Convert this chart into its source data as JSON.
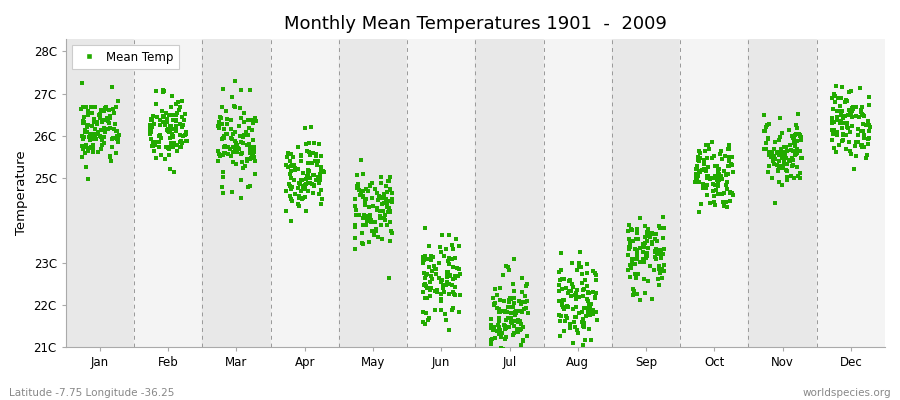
{
  "title": "Monthly Mean Temperatures 1901  -  2009",
  "ylabel": "Temperature",
  "xlabel_bottom": "Latitude -7.75 Longitude -36.25",
  "watermark": "worldspecies.org",
  "yticks": [
    21,
    22,
    23,
    25,
    26,
    27,
    28
  ],
  "ytick_labels": [
    "21C",
    "22C",
    "23C",
    "25C",
    "26C",
    "27C",
    "28C"
  ],
  "months": [
    "Jan",
    "Feb",
    "Mar",
    "Apr",
    "May",
    "Jun",
    "Jul",
    "Aug",
    "Sep",
    "Oct",
    "Nov",
    "Dec"
  ],
  "dot_color": "#22aa00",
  "background_color": "#ffffff",
  "legend_label": "Mean Temp",
  "marker_size": 2.5,
  "n_years": 109,
  "monthly_means": [
    26.1,
    26.1,
    25.9,
    25.1,
    24.3,
    22.5,
    21.8,
    22.0,
    23.2,
    25.1,
    25.6,
    26.3
  ],
  "monthly_stds": [
    0.42,
    0.45,
    0.5,
    0.42,
    0.48,
    0.55,
    0.52,
    0.48,
    0.48,
    0.42,
    0.42,
    0.42
  ]
}
